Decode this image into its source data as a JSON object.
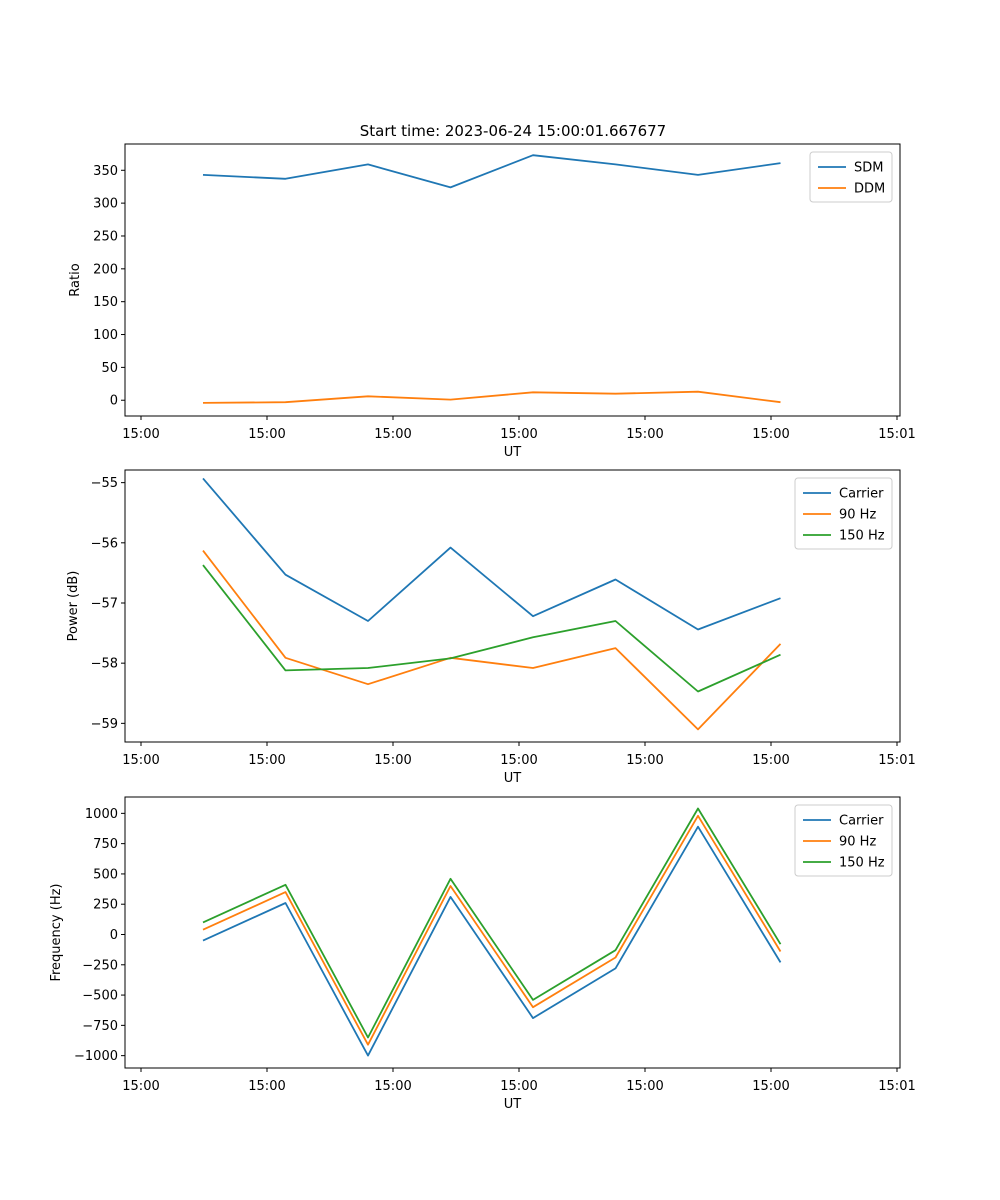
{
  "title": "Start time: 2023-06-24 15:00:01.667677",
  "chart_data": [
    {
      "type": "line",
      "xlabel": "UT",
      "ylabel": "Ratio",
      "xticks": [
        "15:00",
        "15:00",
        "15:00",
        "15:00",
        "15:00",
        "15:00",
        "15:01"
      ],
      "ylim": [
        -24,
        390
      ],
      "yticks": [
        0,
        50,
        100,
        150,
        200,
        250,
        300,
        350
      ],
      "legend_position": "top-right",
      "series": [
        {
          "name": "SDM",
          "color": "#1f77b4",
          "values": [
            343,
            337,
            359,
            324,
            373,
            359,
            343,
            361
          ]
        },
        {
          "name": "DDM",
          "color": "#ff7f0e",
          "values": [
            -4,
            -3,
            6,
            1,
            12,
            10,
            13,
            -3
          ]
        }
      ]
    },
    {
      "type": "line",
      "xlabel": "UT",
      "ylabel": "Power (dB)",
      "xticks": [
        "15:00",
        "15:00",
        "15:00",
        "15:00",
        "15:00",
        "15:00",
        "15:01"
      ],
      "ylim": [
        -59.31,
        -54.79
      ],
      "yticks": [
        -59,
        -58,
        -57,
        -56,
        -55
      ],
      "legend_position": "top-right",
      "series": [
        {
          "name": "Carrier",
          "color": "#1f77b4",
          "values": [
            -54.93,
            -56.53,
            -57.3,
            -56.08,
            -57.22,
            -56.61,
            -57.44,
            -56.92
          ]
        },
        {
          "name": "90 Hz",
          "color": "#ff7f0e",
          "values": [
            -56.13,
            -57.91,
            -58.35,
            -57.91,
            -58.08,
            -57.75,
            -59.1,
            -57.68
          ]
        },
        {
          "name": "150 Hz",
          "color": "#2ca02c",
          "values": [
            -56.37,
            -58.12,
            -58.08,
            -57.92,
            -57.57,
            -57.3,
            -58.47,
            -57.86
          ]
        }
      ]
    },
    {
      "type": "line",
      "xlabel": "UT",
      "ylabel": "Frequency (Hz)",
      "xticks": [
        "15:00",
        "15:00",
        "15:00",
        "15:00",
        "15:00",
        "15:00",
        "15:01"
      ],
      "ylim": [
        -1102,
        1135
      ],
      "yticks": [
        -1000,
        -750,
        -500,
        -250,
        0,
        250,
        500,
        750,
        1000
      ],
      "legend_position": "top-right",
      "series": [
        {
          "name": "Carrier",
          "color": "#1f77b4",
          "values": [
            -50,
            260,
            -1000,
            310,
            -690,
            -280,
            890,
            -230
          ]
        },
        {
          "name": "90 Hz",
          "color": "#ff7f0e",
          "values": [
            40,
            350,
            -910,
            400,
            -600,
            -190,
            980,
            -140
          ]
        },
        {
          "name": "150 Hz",
          "color": "#2ca02c",
          "values": [
            100,
            410,
            -850,
            460,
            -540,
            -130,
            1040,
            -80
          ]
        }
      ]
    }
  ]
}
